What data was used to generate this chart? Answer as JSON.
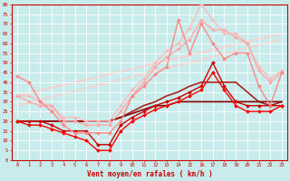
{
  "xlabel": "Vent moyen/en rafales ( km/h )",
  "background_color": "#c8ecec",
  "grid_color": "#ffffff",
  "xlim": [
    -0.5,
    23.5
  ],
  "ylim": [
    0,
    80
  ],
  "xticks": [
    0,
    1,
    2,
    3,
    4,
    5,
    6,
    7,
    8,
    9,
    10,
    11,
    12,
    13,
    14,
    15,
    16,
    17,
    18,
    19,
    20,
    21,
    22,
    23
  ],
  "yticks": [
    0,
    5,
    10,
    15,
    20,
    25,
    30,
    35,
    40,
    45,
    50,
    55,
    60,
    65,
    70,
    75,
    80
  ],
  "lines": [
    {
      "x": [
        0,
        1,
        2,
        3,
        4,
        5,
        6,
        7,
        8,
        9,
        10,
        11,
        12,
        13,
        14,
        15,
        16,
        17,
        18,
        19,
        20,
        21,
        22,
        23
      ],
      "y": [
        20,
        20,
        20,
        20,
        20,
        20,
        20,
        20,
        20,
        22,
        24,
        26,
        28,
        28,
        30,
        30,
        30,
        30,
        30,
        30,
        30,
        30,
        30,
        30
      ],
      "color": "#880000",
      "lw": 1.2,
      "marker": null,
      "ms": 0,
      "zorder": 3
    },
    {
      "x": [
        0,
        1,
        2,
        3,
        4,
        5,
        6,
        7,
        8,
        9,
        10,
        11,
        12,
        13,
        14,
        15,
        16,
        17,
        18,
        19,
        20,
        21,
        22,
        23
      ],
      "y": [
        20,
        20,
        20,
        18,
        15,
        15,
        15,
        8,
        8,
        18,
        22,
        25,
        28,
        30,
        32,
        35,
        38,
        50,
        38,
        30,
        28,
        28,
        28,
        28
      ],
      "color": "#cc0000",
      "lw": 1.0,
      "marker": "D",
      "ms": 2.0,
      "zorder": 4
    },
    {
      "x": [
        0,
        1,
        2,
        3,
        4,
        5,
        6,
        7,
        8,
        9,
        10,
        11,
        12,
        13,
        14,
        15,
        16,
        17,
        18,
        19,
        20,
        21,
        22,
        23
      ],
      "y": [
        20,
        18,
        18,
        16,
        14,
        12,
        10,
        5,
        5,
        15,
        20,
        23,
        26,
        28,
        30,
        33,
        36,
        45,
        36,
        28,
        25,
        25,
        25,
        28
      ],
      "color": "#ff0000",
      "lw": 1.0,
      "marker": "D",
      "ms": 2.0,
      "zorder": 5
    },
    {
      "x": [
        0,
        1,
        2,
        3,
        4,
        5,
        6,
        7,
        8,
        9,
        10,
        11,
        12,
        13,
        14,
        15,
        16,
        17,
        18,
        19,
        20,
        21,
        22,
        23
      ],
      "y": [
        20,
        20,
        20,
        20,
        20,
        20,
        20,
        20,
        20,
        22,
        25,
        28,
        30,
        33,
        35,
        38,
        40,
        40,
        40,
        40,
        35,
        30,
        28,
        30
      ],
      "color": "#aa2222",
      "lw": 1.2,
      "marker": null,
      "ms": 0,
      "zorder": 2
    },
    {
      "x": [
        0,
        1,
        2,
        3,
        4,
        5,
        6,
        7,
        8,
        9,
        10,
        11,
        12,
        13,
        14,
        15,
        16,
        17,
        18,
        19,
        20,
        21,
        22,
        23
      ],
      "y": [
        33,
        33,
        30,
        28,
        22,
        22,
        20,
        20,
        20,
        28,
        36,
        42,
        50,
        56,
        60,
        68,
        80,
        72,
        65,
        65,
        60,
        48,
        42,
        46
      ],
      "color": "#ffbbbb",
      "lw": 1.0,
      "marker": "D",
      "ms": 2.0,
      "zorder": 6
    },
    {
      "x": [
        0,
        1,
        2,
        3,
        4,
        5,
        6,
        7,
        8,
        9,
        10,
        11,
        12,
        13,
        14,
        15,
        16,
        17,
        18,
        19,
        20,
        21,
        22,
        23
      ],
      "y": [
        33,
        30,
        28,
        28,
        20,
        20,
        18,
        18,
        18,
        25,
        33,
        40,
        48,
        53,
        57,
        62,
        72,
        67,
        67,
        63,
        60,
        46,
        40,
        45
      ],
      "color": "#ffaaaa",
      "lw": 1.0,
      "marker": "D",
      "ms": 2.0,
      "zorder": 6
    },
    {
      "x": [
        0,
        1,
        2,
        3,
        4,
        5,
        6,
        7,
        8,
        9,
        10,
        11,
        12,
        13,
        14,
        15,
        16,
        17,
        18,
        19,
        20,
        21,
        22,
        23
      ],
      "y": [
        43,
        40,
        30,
        25,
        18,
        14,
        14,
        14,
        14,
        20,
        33,
        38,
        44,
        48,
        72,
        55,
        70,
        60,
        52,
        55,
        55,
        38,
        28,
        45
      ],
      "color": "#ff8888",
      "lw": 1.0,
      "marker": "D",
      "ms": 2.0,
      "zorder": 6
    },
    {
      "x": [
        0,
        23
      ],
      "y": [
        33,
        65
      ],
      "color": "#ffcccc",
      "lw": 1.2,
      "marker": null,
      "ms": 0,
      "zorder": 1
    },
    {
      "x": [
        0,
        23
      ],
      "y": [
        28,
        62
      ],
      "color": "#ffcccc",
      "lw": 1.0,
      "marker": null,
      "ms": 0,
      "zorder": 1
    }
  ],
  "tick_label_color": "#cc0000",
  "axis_color": "#cc0000"
}
